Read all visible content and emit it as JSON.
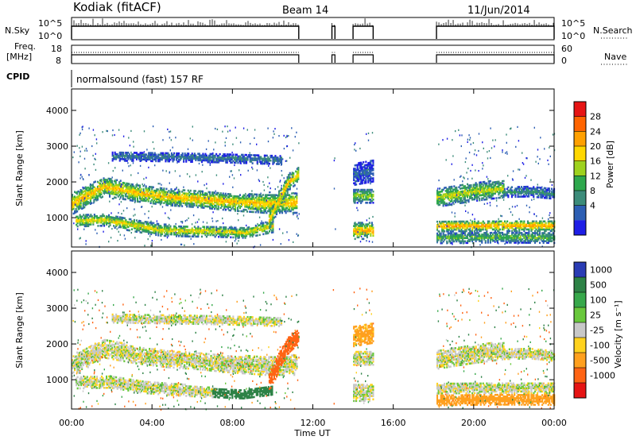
{
  "header": {
    "station": "Kodiak (fitACF)",
    "beam": "Beam 14",
    "date": "11/Jun/2014"
  },
  "mini_panels": {
    "nsky_label": "N.Sky",
    "nsky_ticks": [
      "10^5",
      "10^0"
    ],
    "nsearch_label": "N.Search",
    "nsearch_ticks": [
      "10^5",
      "10^0"
    ],
    "freq_label_line1": "Freq.",
    "freq_label_line2": "[MHz]",
    "freq_ticks": [
      "18",
      "8"
    ],
    "nave_label": "Nave",
    "nave_ticks": [
      "60",
      "0"
    ],
    "cpid_label": "CPID",
    "cpid_text": "normalsound (fast) 157 RF",
    "data_segments": [
      [
        0.0,
        11.3
      ],
      [
        12.95,
        13.1
      ],
      [
        14.0,
        15.0
      ],
      [
        18.15,
        24.0
      ]
    ]
  },
  "chart_data": [
    {
      "type": "heatmap",
      "name": "power",
      "xlabel": "Time UT",
      "ylabel": "Slant Range [km]",
      "xlim": [
        0,
        24
      ],
      "ylim": [
        180,
        4600
      ],
      "x_ticks": [
        "00:00",
        "04:00",
        "08:00",
        "12:00",
        "16:00",
        "20:00",
        "00:00"
      ],
      "x_tick_values": [
        0,
        4,
        8,
        12,
        16,
        20,
        24
      ],
      "y_ticks": [
        1000,
        2000,
        3000,
        4000
      ],
      "colorbar_label": "Power [dB]",
      "colorbar_ticks": [
        "28",
        "24",
        "20",
        "16",
        "12",
        "8",
        "4"
      ],
      "colorbar_tick_values": [
        28,
        24,
        20,
        16,
        12,
        8,
        4
      ],
      "colorbar_range": [
        0,
        32
      ],
      "colors": [
        "#1e1ee6",
        "#2d5fb4",
        "#3c8c7a",
        "#2ea84d",
        "#9ed21e",
        "#ffd700",
        "#ffa000",
        "#ff6400",
        "#e61414"
      ],
      "bands": [
        {
          "t": [
            0,
            11.2
          ],
          "r": [
            1380,
            1860,
            1680,
            1560,
            1500,
            1420,
            1380,
            1400
          ],
          "w": [
            300,
            260,
            240,
            230,
            230,
            240,
            260,
            280
          ],
          "p": 22
        },
        {
          "t": [
            0.2,
            10.0
          ],
          "r": [
            900,
            920,
            780,
            640,
            610,
            600,
            560,
            760
          ],
          "w": [
            160,
            160,
            170,
            160,
            150,
            150,
            140,
            180
          ],
          "p": 20
        },
        {
          "t": [
            9.8,
            11.3
          ],
          "r": [
            900,
            1500,
            2000,
            2200
          ],
          "w": [
            250,
            250,
            230,
            200
          ],
          "p": 22
        },
        {
          "t": [
            2.0,
            10.4
          ],
          "r": [
            2700,
            2680,
            2650,
            2600
          ],
          "w": [
            120,
            120,
            120,
            120
          ],
          "p": 8
        },
        {
          "t": [
            14.0,
            15.0
          ],
          "r": [
            1600,
            1600
          ],
          "w": [
            200,
            200
          ],
          "p": 16
        },
        {
          "t": [
            14.0,
            15.0
          ],
          "r": [
            620,
            620
          ],
          "w": [
            230,
            230
          ],
          "p": 23
        },
        {
          "t": [
            14.0,
            15.0
          ],
          "r": [
            2200,
            2300
          ],
          "w": [
            300,
            300
          ],
          "p": 6
        },
        {
          "t": [
            18.15,
            21.5
          ],
          "r": [
            1550,
            1700,
            1800
          ],
          "w": [
            260,
            260,
            240
          ],
          "p": 18
        },
        {
          "t": [
            21.5,
            24.0
          ],
          "r": [
            1700,
            1720,
            1650
          ],
          "w": [
            140,
            140,
            140
          ],
          "p": 10
        },
        {
          "t": [
            18.15,
            24.0
          ],
          "r": [
            750,
            760,
            760
          ],
          "w": [
            150,
            150,
            150
          ],
          "p": 24
        },
        {
          "t": [
            18.15,
            24.0
          ],
          "r": [
            420,
            440,
            430
          ],
          "w": [
            150,
            150,
            150
          ],
          "p": 14
        }
      ]
    },
    {
      "type": "heatmap",
      "name": "velocity",
      "xlabel": "Time UT",
      "ylabel": "Slant Range [km]",
      "xlim": [
        0,
        24
      ],
      "ylim": [
        180,
        4600
      ],
      "x_ticks": [
        "00:00",
        "04:00",
        "08:00",
        "12:00",
        "16:00",
        "20:00",
        "00:00"
      ],
      "x_tick_values": [
        0,
        4,
        8,
        12,
        16,
        20,
        24
      ],
      "y_ticks": [
        1000,
        2000,
        3000,
        4000
      ],
      "colorbar_label": "Velocity [m s⁻¹]",
      "colorbar_ticks": [
        "1000",
        "500",
        "100",
        "25",
        "-25",
        "-100",
        "-500",
        "-1000"
      ],
      "colorbar_tick_values": [
        1000,
        500,
        100,
        25,
        -25,
        -100,
        -500,
        -1000
      ],
      "colors": [
        "#2a3cb4",
        "#2d8246",
        "#37a84b",
        "#69c83c",
        "#c8c8c8",
        "#ffd21e",
        "#ffa01e",
        "#ff6414",
        "#e61414"
      ],
      "bands": [
        {
          "t": [
            0,
            11.2
          ],
          "r": [
            1380,
            1860,
            1680,
            1560,
            1500,
            1420,
            1380,
            1400
          ],
          "w": [
            300,
            260,
            240,
            230,
            230,
            240,
            260,
            280
          ],
          "v": 0
        },
        {
          "t": [
            0.2,
            7.0
          ],
          "r": [
            900,
            920,
            780,
            700,
            640
          ],
          "w": [
            160,
            160,
            170,
            160,
            150
          ],
          "v": 0
        },
        {
          "t": [
            7.0,
            10.0
          ],
          "r": [
            620,
            580,
            700
          ],
          "w": [
            120,
            120,
            130
          ],
          "v": 120
        },
        {
          "t": [
            9.8,
            11.3
          ],
          "r": [
            900,
            1500,
            2000,
            2200
          ],
          "w": [
            260,
            260,
            240,
            200
          ],
          "v": -300
        },
        {
          "t": [
            2.0,
            10.4
          ],
          "r": [
            2700,
            2680,
            2650,
            2600
          ],
          "w": [
            120,
            120,
            120,
            120
          ],
          "v": 0
        },
        {
          "t": [
            14.0,
            15.0
          ],
          "r": [
            1600,
            1600
          ],
          "w": [
            200,
            200
          ],
          "v": 0
        },
        {
          "t": [
            14.0,
            15.0
          ],
          "r": [
            620,
            620
          ],
          "w": [
            230,
            230
          ],
          "v": 0
        },
        {
          "t": [
            14.0,
            15.0
          ],
          "r": [
            2200,
            2300
          ],
          "w": [
            280,
            280
          ],
          "v": -40
        },
        {
          "t": [
            18.15,
            21.5
          ],
          "r": [
            1550,
            1700,
            1800
          ],
          "w": [
            260,
            260,
            240
          ],
          "v": 0
        },
        {
          "t": [
            21.5,
            24.0
          ],
          "r": [
            1700,
            1720,
            1650
          ],
          "w": [
            140,
            140,
            140
          ],
          "v": 0
        },
        {
          "t": [
            18.15,
            24.0
          ],
          "r": [
            750,
            760,
            760
          ],
          "w": [
            150,
            150,
            150
          ],
          "v": 0
        },
        {
          "t": [
            18.15,
            24.0
          ],
          "r": [
            420,
            440,
            430
          ],
          "w": [
            150,
            150,
            150
          ],
          "v": -60
        }
      ]
    }
  ]
}
